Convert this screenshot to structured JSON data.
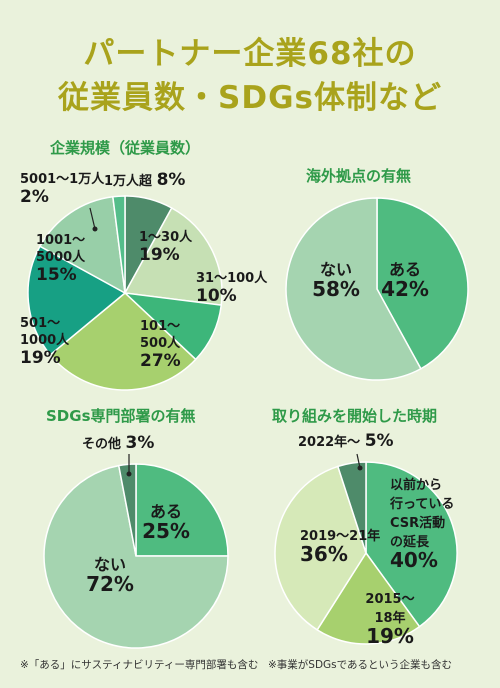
{
  "header": {
    "title_line1": "パートナー企業68社の",
    "title_line2": "従業員数・SDGs体制など"
  },
  "colors": {
    "title": "#a9a31c",
    "chart_title": "#2f9a49",
    "background": "#eaf2dc"
  },
  "chart_data": [
    {
      "type": "pie",
      "title": "企業規模（従業員数）",
      "slices": [
        {
          "label": "1万人超",
          "value": 8,
          "color": "#4e8b6a"
        },
        {
          "label": "1～30人",
          "value": 19,
          "color": "#c6e0b4"
        },
        {
          "label": "31～100人",
          "value": 10,
          "color": "#3db67a"
        },
        {
          "label": "101～500人",
          "value": 27,
          "color": "#a7d06e"
        },
        {
          "label": "501～1000人",
          "value": 19,
          "color": "#17a084"
        },
        {
          "label": "1001～5000人",
          "value": 15,
          "color": "#98cfa8"
        },
        {
          "label": "5001～1万人",
          "value": 2,
          "color": "#54bd8a"
        }
      ],
      "labels": [
        {
          "lines": [
            "1万人超"
          ],
          "pct": "8%"
        },
        {
          "lines": [
            "1～30人"
          ],
          "pct": "19%"
        },
        {
          "lines": [
            "31～100人"
          ],
          "pct": "10%"
        },
        {
          "lines": [
            "101～",
            "500人"
          ],
          "pct": "27%"
        },
        {
          "lines": [
            "501～",
            "1000人"
          ],
          "pct": "19%"
        },
        {
          "lines": [
            "1001～",
            "5000人"
          ],
          "pct": "15%"
        },
        {
          "lines": [
            "5001～1万人"
          ],
          "pct": "2%"
        }
      ]
    },
    {
      "type": "pie",
      "title": "海外拠点の有無",
      "slices": [
        {
          "label": "ある",
          "value": 42,
          "color": "#4fbb80"
        },
        {
          "label": "ない",
          "value": 58,
          "color": "#a5d4b0"
        }
      ],
      "labels": [
        {
          "lines": [
            "ある"
          ],
          "pct": "42%"
        },
        {
          "lines": [
            "ない"
          ],
          "pct": "58%"
        }
      ]
    },
    {
      "type": "pie",
      "title": "SDGs専門部署の有無",
      "slices": [
        {
          "label": "ある",
          "value": 25,
          "color": "#4fbb80"
        },
        {
          "label": "ない",
          "value": 72,
          "color": "#a5d4b0"
        },
        {
          "label": "その他",
          "value": 3,
          "color": "#4e8b6a"
        }
      ],
      "labels": [
        {
          "lines": [
            "ある"
          ],
          "pct": "25%"
        },
        {
          "lines": [
            "ない"
          ],
          "pct": "72%"
        },
        {
          "lines": [
            "その他"
          ],
          "pct": "3%"
        }
      ]
    },
    {
      "type": "pie",
      "title": "取り組みを開始した時期",
      "slices": [
        {
          "label": "以前から行っているCSR活動の延長",
          "value": 40,
          "color": "#4fbb80"
        },
        {
          "label": "2015～18年",
          "value": 19,
          "color": "#a7d06e"
        },
        {
          "label": "2019～21年",
          "value": 36,
          "color": "#d6e9b8"
        },
        {
          "label": "2022年～",
          "value": 5,
          "color": "#4e8b6a"
        }
      ],
      "labels": [
        {
          "lines": [
            "以前から",
            "行っている",
            "CSR活動",
            "の延長"
          ],
          "pct": "40%"
        },
        {
          "lines": [
            "2015～",
            "18年"
          ],
          "pct": "19%"
        },
        {
          "lines": [
            "2019～21年"
          ],
          "pct": "36%"
        },
        {
          "lines": [
            "2022年～"
          ],
          "pct": "5%"
        }
      ]
    }
  ],
  "footnotes": {
    "left": "※「ある」にサスティナビリティー専門部署も含む",
    "right": "※事業がSDGsであるという企業も含む"
  }
}
